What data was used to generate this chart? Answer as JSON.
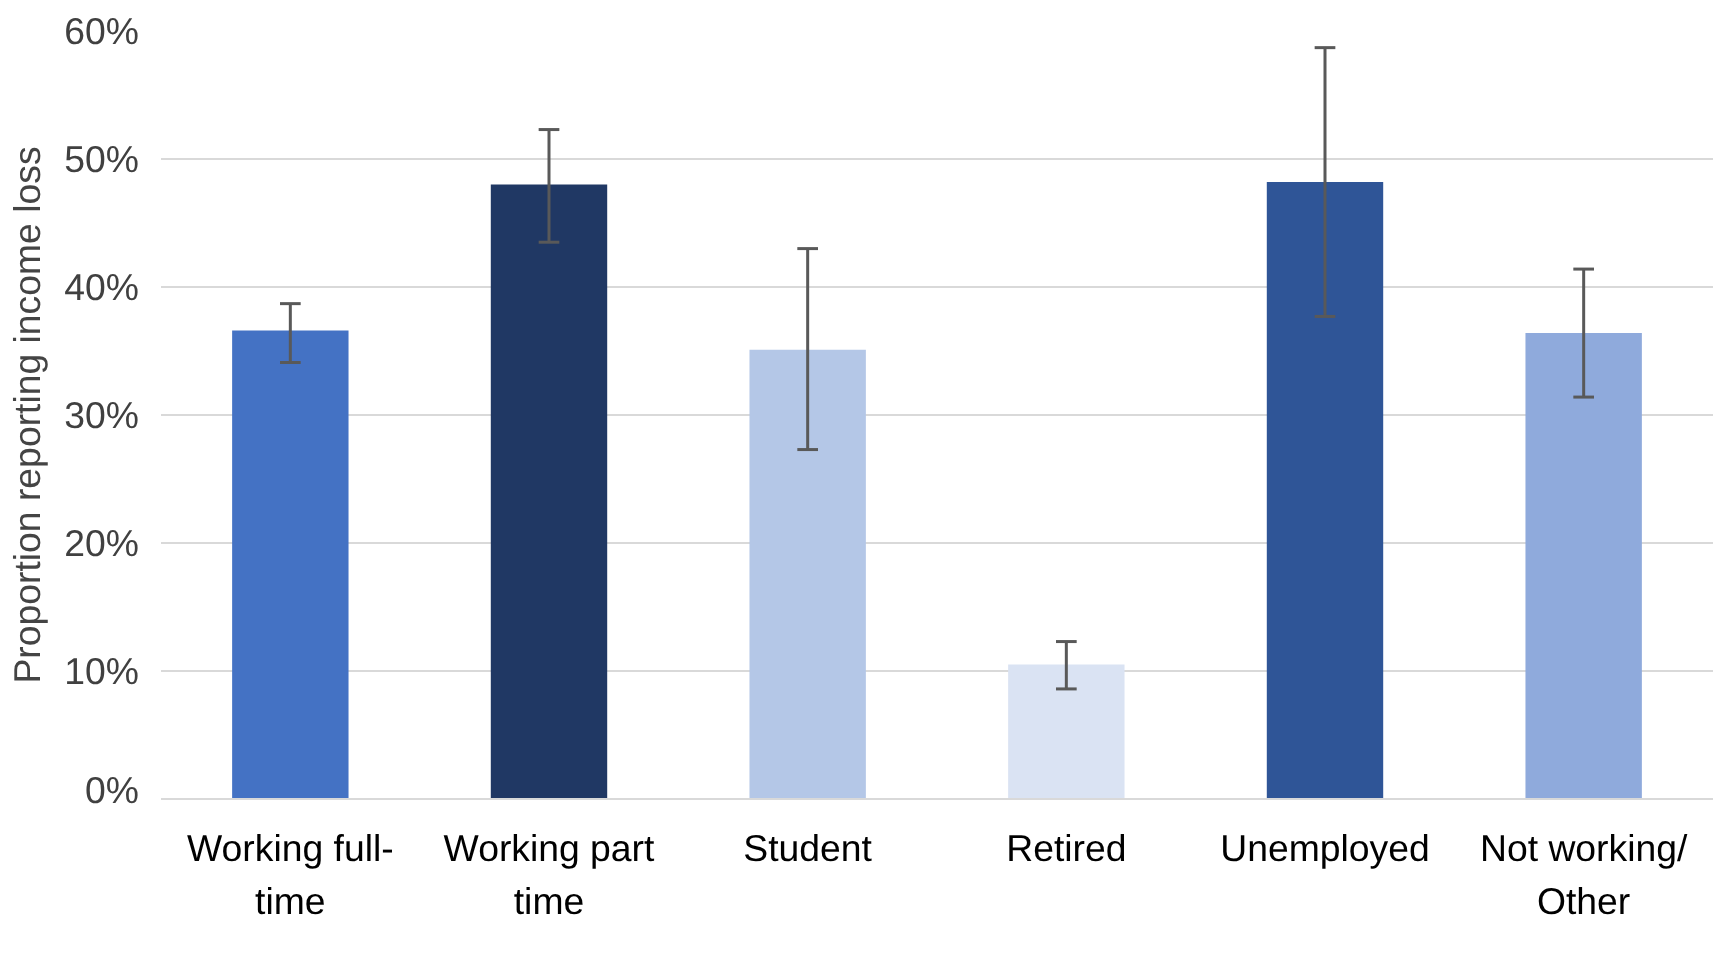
{
  "chart_data": {
    "type": "bar",
    "ylabel": "Proportion reporting income loss",
    "categories": [
      "Working full-time",
      "Working part time",
      "Student",
      "Retired",
      "Unemployed",
      "Not working/ Other"
    ],
    "values": [
      36.6,
      48.0,
      35.1,
      10.5,
      48.2,
      36.4
    ],
    "colors": [
      "#4472c4",
      "#203864",
      "#b4c7e7",
      "#dae3f3",
      "#2f5597",
      "#8faadc"
    ],
    "errors": [
      [
        34.1,
        38.7
      ],
      [
        43.5,
        52.3
      ],
      [
        27.3,
        43.0
      ],
      [
        8.6,
        12.3
      ],
      [
        37.7,
        58.7
      ],
      [
        31.4,
        41.4
      ]
    ],
    "ylim": [
      0,
      60
    ],
    "yticks": [
      {
        "value": 0,
        "label": "0%"
      },
      {
        "value": 10,
        "label": "10%"
      },
      {
        "value": 20,
        "label": "20%"
      },
      {
        "value": 30,
        "label": "30%"
      },
      {
        "value": 40,
        "label": "40%"
      },
      {
        "value": 50,
        "label": "50%"
      },
      {
        "value": 60,
        "label": "60%"
      }
    ],
    "grid": "y"
  }
}
